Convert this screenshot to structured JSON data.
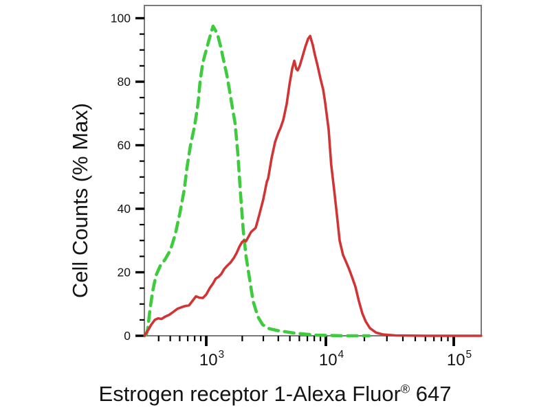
{
  "figure": {
    "background": "#ffffff",
    "text_color": "#141414",
    "box_color": "#787878",
    "tick_color": "#000000"
  },
  "chart_data": {
    "type": "line",
    "title": "",
    "xlabel_prefix": "Estrogen receptor 1-Alexa Fluor",
    "xlabel_sup": "®",
    "xlabel_suffix": " 647",
    "xlabel_full": "Estrogen receptor 1-Alexa Fluor® 647",
    "ylabel": "Cell Counts (% Max)",
    "x_scale": "biexponential-log",
    "y_scale": "linear",
    "grid": false,
    "legend": false,
    "xlim": [
      304,
      164000
    ],
    "ylim": [
      0,
      104
    ],
    "x_major_ticks": [
      {
        "label": "10^3",
        "value": 1000
      },
      {
        "label": "10^4",
        "value": 10000
      },
      {
        "label": "10^5",
        "value": 100000
      }
    ],
    "x_minor_tick_values": [
      400,
      500,
      600,
      700,
      800,
      900,
      2000,
      3000,
      4000,
      5000,
      6000,
      7000,
      8000,
      9000,
      20000,
      30000,
      40000,
      50000,
      60000,
      70000,
      80000,
      90000
    ],
    "x_scale_anchors": [
      {
        "value": 1000,
        "frac": 0.1837
      },
      {
        "value": 10000,
        "frac": 0.5388
      },
      {
        "value": 100000,
        "frac": 0.9184
      }
    ],
    "y_major_ticks": [
      {
        "label": "0",
        "value": 0
      },
      {
        "label": "20",
        "value": 20
      },
      {
        "label": "40",
        "value": 40
      },
      {
        "label": "60",
        "value": 60
      },
      {
        "label": "80",
        "value": 80
      },
      {
        "label": "100",
        "value": 100
      }
    ],
    "y_minor_step": 5,
    "series": [
      {
        "id": "green-dashed",
        "color": "#3ecb3e",
        "line_style": "dashed",
        "line_width": 4.6,
        "peak": {
          "x": 1140,
          "y": 97.5
        },
        "points": [
          [
            304,
            0
          ],
          [
            316,
            0.5
          ],
          [
            324,
            2
          ],
          [
            338,
            8
          ],
          [
            356,
            14
          ],
          [
            380,
            19
          ],
          [
            412,
            22
          ],
          [
            452,
            24
          ],
          [
            502,
            27
          ],
          [
            551,
            32
          ],
          [
            605,
            39
          ],
          [
            655,
            46
          ],
          [
            690,
            53
          ],
          [
            738,
            60
          ],
          [
            798,
            66
          ],
          [
            853,
            73
          ],
          [
            887,
            80
          ],
          [
            936,
            86
          ],
          [
            1000,
            90
          ],
          [
            1070,
            94
          ],
          [
            1140,
            97.5
          ],
          [
            1240,
            95
          ],
          [
            1320,
            91
          ],
          [
            1410,
            86
          ],
          [
            1490,
            82
          ],
          [
            1570,
            77
          ],
          [
            1650,
            72
          ],
          [
            1740,
            67
          ],
          [
            1840,
            57
          ],
          [
            1940,
            44
          ],
          [
            2040,
            33
          ],
          [
            2150,
            25
          ],
          [
            2300,
            18
          ],
          [
            2460,
            11
          ],
          [
            2700,
            6
          ],
          [
            2960,
            3.5
          ],
          [
            3380,
            2.2
          ],
          [
            4010,
            1.6
          ],
          [
            4700,
            1.2
          ],
          [
            5580,
            0.8
          ],
          [
            6810,
            0.5
          ],
          [
            8320,
            0.2
          ],
          [
            10800,
            0.1
          ],
          [
            13800,
            0
          ],
          [
            17700,
            0
          ],
          [
            21800,
            0
          ]
        ]
      },
      {
        "id": "red-solid",
        "color": "#d03434",
        "line_style": "solid",
        "line_width": 3.6,
        "peak": {
          "x": 7380,
          "y": 94.4
        },
        "points": [
          [
            304,
            0
          ],
          [
            329,
            2
          ],
          [
            347,
            3.5
          ],
          [
            371,
            5
          ],
          [
            396,
            5.5
          ],
          [
            423,
            5.3
          ],
          [
            452,
            6
          ],
          [
            490,
            6.6
          ],
          [
            530,
            7.5
          ],
          [
            574,
            8.5
          ],
          [
            621,
            9
          ],
          [
            673,
            9.4
          ],
          [
            718,
            9.6
          ],
          [
            767,
            11
          ],
          [
            820,
            12.4
          ],
          [
            877,
            12
          ],
          [
            936,
            11.9
          ],
          [
            1000,
            13
          ],
          [
            1070,
            15
          ],
          [
            1140,
            16.5
          ],
          [
            1200,
            18
          ],
          [
            1270,
            18.6
          ],
          [
            1340,
            19.5
          ],
          [
            1410,
            21
          ],
          [
            1490,
            22
          ],
          [
            1590,
            23
          ],
          [
            1700,
            24.5
          ],
          [
            1790,
            26
          ],
          [
            1890,
            28
          ],
          [
            1990,
            29.5
          ],
          [
            2070,
            30
          ],
          [
            2150,
            29.8
          ],
          [
            2370,
            32.7
          ],
          [
            2590,
            34
          ],
          [
            2770,
            38
          ],
          [
            3000,
            43
          ],
          [
            3210,
            48.5
          ],
          [
            3290,
            49.5
          ],
          [
            3520,
            56
          ],
          [
            3760,
            61
          ],
          [
            4010,
            64
          ],
          [
            4180,
            65.5
          ],
          [
            4410,
            68
          ],
          [
            4700,
            73
          ],
          [
            4960,
            79
          ],
          [
            5220,
            84
          ],
          [
            5450,
            86.6
          ],
          [
            5660,
            84
          ],
          [
            5810,
            83.6
          ],
          [
            6050,
            85
          ],
          [
            6380,
            88
          ],
          [
            6730,
            91
          ],
          [
            7100,
            93.5
          ],
          [
            7380,
            94.4
          ],
          [
            7780,
            91.5
          ],
          [
            8090,
            88.5
          ],
          [
            8530,
            85
          ],
          [
            9000,
            81
          ],
          [
            9490,
            77.5
          ],
          [
            9860,
            73.5
          ],
          [
            10500,
            65
          ],
          [
            11000,
            54
          ],
          [
            11600,
            46
          ],
          [
            12200,
            38
          ],
          [
            12800,
            30
          ],
          [
            13600,
            25.5
          ],
          [
            14300,
            23.5
          ],
          [
            15200,
            21
          ],
          [
            16000,
            18.5
          ],
          [
            17000,
            15.5
          ],
          [
            18100,
            11
          ],
          [
            19300,
            7
          ],
          [
            20500,
            4.5
          ],
          [
            22100,
            2.4
          ],
          [
            24700,
            1
          ],
          [
            27900,
            0.4
          ],
          [
            34900,
            0.1
          ],
          [
            61000,
            0
          ],
          [
            164000,
            0
          ]
        ]
      }
    ]
  }
}
